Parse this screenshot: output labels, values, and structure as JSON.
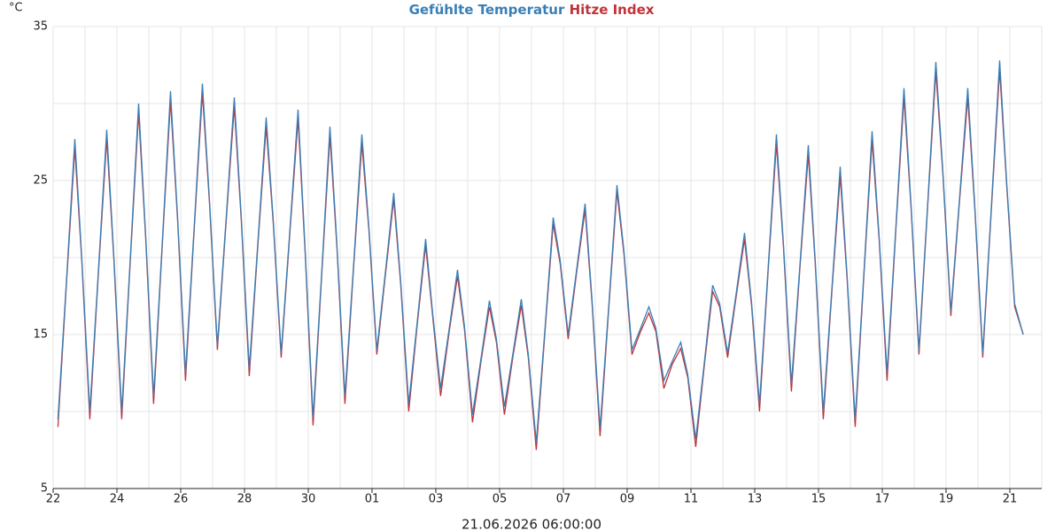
{
  "chart_data": {
    "type": "line",
    "y_unit": "°C",
    "footer": "21.06.2026 06:00:00",
    "x": [
      0.15,
      0.42,
      0.68,
      0.9,
      1.15,
      1.42,
      1.68,
      1.9,
      2.15,
      2.42,
      2.68,
      2.9,
      3.15,
      3.42,
      3.68,
      3.9,
      4.15,
      4.42,
      4.68,
      4.9,
      5.15,
      5.42,
      5.68,
      5.9,
      6.15,
      6.42,
      6.68,
      6.9,
      7.15,
      7.42,
      7.68,
      7.9,
      8.15,
      8.42,
      8.68,
      8.9,
      9.15,
      9.42,
      9.68,
      9.9,
      10.15,
      10.42,
      10.68,
      10.9,
      11.15,
      11.42,
      11.68,
      11.9,
      12.15,
      12.42,
      12.68,
      12.9,
      13.15,
      13.42,
      13.68,
      13.9,
      14.15,
      14.42,
      14.68,
      14.9,
      15.15,
      15.42,
      15.68,
      15.9,
      16.15,
      16.42,
      16.68,
      16.9,
      17.15,
      17.42,
      17.68,
      17.9,
      18.15,
      18.42,
      18.68,
      18.9,
      19.15,
      19.42,
      19.68,
      19.9,
      20.15,
      20.42,
      20.68,
      20.9,
      21.15,
      21.42,
      21.68,
      21.9,
      22.15,
      22.42,
      22.68,
      22.9,
      23.15,
      23.42,
      23.68,
      23.9,
      24.15,
      24.42,
      24.68,
      24.9,
      25.15,
      25.42,
      25.68,
      25.9,
      26.15,
      26.42,
      26.68,
      26.9,
      27.15,
      27.42,
      27.68,
      27.9,
      28.15,
      28.42,
      28.68,
      28.9,
      29.15,
      29.42,
      29.68,
      29.9,
      30.15,
      30.42
    ],
    "series": [
      {
        "name": "Gefühlte Temperatur",
        "color": "#3a7fb5",
        "values": [
          9.5,
          18.6,
          27.7,
          19.9,
          10,
          19.2,
          28.3,
          20.2,
          10,
          20,
          30,
          21.5,
          11,
          20.9,
          30.8,
          22.7,
          12.5,
          21.9,
          31.3,
          23.8,
          14.3,
          22.4,
          30.4,
          22.6,
          12.8,
          21,
          29.1,
          22.5,
          13.8,
          21.7,
          29.6,
          20.6,
          9.6,
          19,
          28.5,
          20.8,
          11,
          19.5,
          28,
          22,
          14,
          19.1,
          24.2,
          18.4,
          10.5,
          15.9,
          21.2,
          16.4,
          11.5,
          15.4,
          19.2,
          15.5,
          9.8,
          13.5,
          17.2,
          14.7,
          10.3,
          13.8,
          17.3,
          13.7,
          8,
          15.3,
          22.6,
          19.8,
          15,
          19.3,
          23.5,
          17.2,
          8.9,
          16.8,
          24.7,
          20.4,
          14,
          15.4,
          16.8,
          15.4,
          12,
          13.3,
          14.5,
          12.4,
          8.2,
          13.2,
          18.2,
          17,
          13.8,
          17.7,
          21.6,
          17.1,
          10.5,
          19.3,
          28,
          20.9,
          11.8,
          19.6,
          27.3,
          19.7,
          10,
          18,
          25.9,
          18.7,
          9.5,
          18.9,
          28.2,
          21.4,
          12.5,
          21.8,
          31,
          23.5,
          14,
          23.4,
          32.7,
          25.6,
          16.5,
          23.8,
          31,
          23.4,
          13.8,
          23.3,
          32.8,
          24.9,
          17,
          15
        ]
      },
      {
        "name": "Hitze Index",
        "color": "#c0333a",
        "values": [
          9,
          18.4,
          27.1,
          19.7,
          9.5,
          19,
          27.7,
          20,
          9.5,
          19.8,
          29.4,
          21.3,
          10.5,
          20.7,
          30.2,
          22.5,
          12,
          21.7,
          30.7,
          23.6,
          14,
          22.2,
          29.8,
          22.4,
          12.3,
          20.8,
          28.5,
          22.3,
          13.5,
          21.5,
          29,
          20.4,
          9.1,
          18.8,
          27.9,
          20.6,
          10.5,
          19.3,
          27.4,
          21.8,
          13.7,
          18.9,
          23.8,
          18.2,
          10,
          15.7,
          20.8,
          16.2,
          11,
          15.2,
          18.8,
          15.3,
          9.3,
          13.3,
          16.8,
          14.5,
          9.8,
          13.6,
          16.9,
          13.5,
          7.5,
          15.1,
          22.2,
          19.6,
          14.7,
          19.1,
          23.1,
          17,
          8.4,
          16.6,
          24.3,
          20.2,
          13.7,
          15.2,
          16.4,
          15.2,
          11.5,
          13.1,
          14.1,
          12.2,
          7.7,
          13,
          17.8,
          16.8,
          13.5,
          17.5,
          21.2,
          16.9,
          10,
          19.1,
          27.4,
          20.7,
          11.3,
          19.4,
          26.7,
          19.5,
          9.5,
          17.8,
          25.3,
          18.5,
          9,
          18.7,
          27.6,
          21.2,
          12,
          21.6,
          30.4,
          23.3,
          13.7,
          23.2,
          32.1,
          25.4,
          16.2,
          23.6,
          30.4,
          23.2,
          13.5,
          23.1,
          32.2,
          24.7,
          16.8,
          15
        ]
      }
    ],
    "xlim": [
      0,
      31
    ],
    "xticks": [
      {
        "value": 0,
        "label": "22"
      },
      {
        "value": 2,
        "label": "24"
      },
      {
        "value": 4,
        "label": "26"
      },
      {
        "value": 6,
        "label": "28"
      },
      {
        "value": 8,
        "label": "30"
      },
      {
        "value": 10,
        "label": "01"
      },
      {
        "value": 12,
        "label": "03"
      },
      {
        "value": 14,
        "label": "05"
      },
      {
        "value": 16,
        "label": "07"
      },
      {
        "value": 18,
        "label": "09"
      },
      {
        "value": 20,
        "label": "11"
      },
      {
        "value": 22,
        "label": "13"
      },
      {
        "value": 24,
        "label": "15"
      },
      {
        "value": 26,
        "label": "17"
      },
      {
        "value": 28,
        "label": "19"
      },
      {
        "value": 30,
        "label": "21"
      }
    ],
    "ylim": [
      5,
      35
    ],
    "yticks": [
      5,
      15,
      25,
      35
    ],
    "grid": true,
    "xgrid_step": 1,
    "ygrid_step": 5
  }
}
